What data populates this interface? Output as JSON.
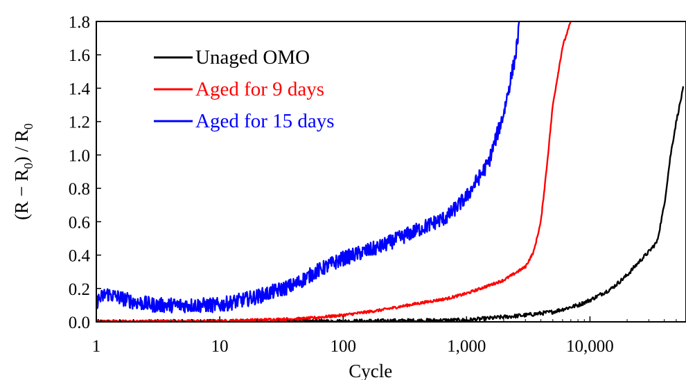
{
  "chart_data": {
    "type": "line",
    "xlabel": "Cycle",
    "ylabel_parts": {
      "open": "(R − R",
      "sub1": "0",
      "mid": ") / R",
      "sub2": "0"
    },
    "x_scale": "log",
    "xlim": [
      1,
      60000
    ],
    "ylim": [
      0,
      1.8
    ],
    "x_ticks": [
      {
        "value": 1,
        "label": "1"
      },
      {
        "value": 10,
        "label": "10"
      },
      {
        "value": 100,
        "label": "100"
      },
      {
        "value": 1000,
        "label": "1,000"
      },
      {
        "value": 10000,
        "label": "10,000"
      }
    ],
    "y_ticks": [
      {
        "value": 0.0,
        "label": "0.0"
      },
      {
        "value": 0.2,
        "label": "0.2"
      },
      {
        "value": 0.4,
        "label": "0.4"
      },
      {
        "value": 0.6,
        "label": "0.6"
      },
      {
        "value": 0.8,
        "label": "0.8"
      },
      {
        "value": 1.0,
        "label": "1.0"
      },
      {
        "value": 1.2,
        "label": "1.2"
      },
      {
        "value": 1.4,
        "label": "1.4"
      },
      {
        "value": 1.6,
        "label": "1.6"
      },
      {
        "value": 1.8,
        "label": "1.8"
      }
    ],
    "grid": false,
    "legend_position": "top-left",
    "series": [
      {
        "name": "Unaged OMO",
        "color": "#000000",
        "noise": 0.012,
        "points": [
          [
            1,
            0.0
          ],
          [
            100,
            0.003
          ],
          [
            1000,
            0.01
          ],
          [
            3000,
            0.04
          ],
          [
            5000,
            0.06
          ],
          [
            8000,
            0.1
          ],
          [
            10000,
            0.13
          ],
          [
            15000,
            0.2
          ],
          [
            20000,
            0.28
          ],
          [
            25000,
            0.36
          ],
          [
            30000,
            0.42
          ],
          [
            35000,
            0.48
          ],
          [
            40000,
            0.7
          ],
          [
            45000,
            1.0
          ],
          [
            50000,
            1.2
          ],
          [
            57000,
            1.4
          ]
        ]
      },
      {
        "name": "Aged for 9 days",
        "color": "#ff0000",
        "noise": 0.008,
        "points": [
          [
            1,
            0.0
          ],
          [
            10,
            0.005
          ],
          [
            50,
            0.02
          ],
          [
            100,
            0.04
          ],
          [
            200,
            0.07
          ],
          [
            400,
            0.11
          ],
          [
            700,
            0.14
          ],
          [
            1000,
            0.17
          ],
          [
            2000,
            0.25
          ],
          [
            3000,
            0.33
          ],
          [
            3500,
            0.42
          ],
          [
            4000,
            0.6
          ],
          [
            4500,
            0.95
          ],
          [
            5000,
            1.3
          ],
          [
            6000,
            1.65
          ],
          [
            7000,
            1.8
          ]
        ]
      },
      {
        "name": "Aged for 15 days",
        "color": "#0000ff",
        "noise": 0.045,
        "points": [
          [
            1,
            0.12
          ],
          [
            1.2,
            0.17
          ],
          [
            2,
            0.12
          ],
          [
            3,
            0.1
          ],
          [
            5,
            0.1
          ],
          [
            10,
            0.1
          ],
          [
            20,
            0.15
          ],
          [
            40,
            0.22
          ],
          [
            60,
            0.3
          ],
          [
            100,
            0.38
          ],
          [
            200,
            0.45
          ],
          [
            400,
            0.55
          ],
          [
            700,
            0.63
          ],
          [
            1000,
            0.75
          ],
          [
            1500,
            0.95
          ],
          [
            2000,
            1.25
          ],
          [
            2500,
            1.6
          ],
          [
            2700,
            1.8
          ]
        ]
      }
    ]
  }
}
